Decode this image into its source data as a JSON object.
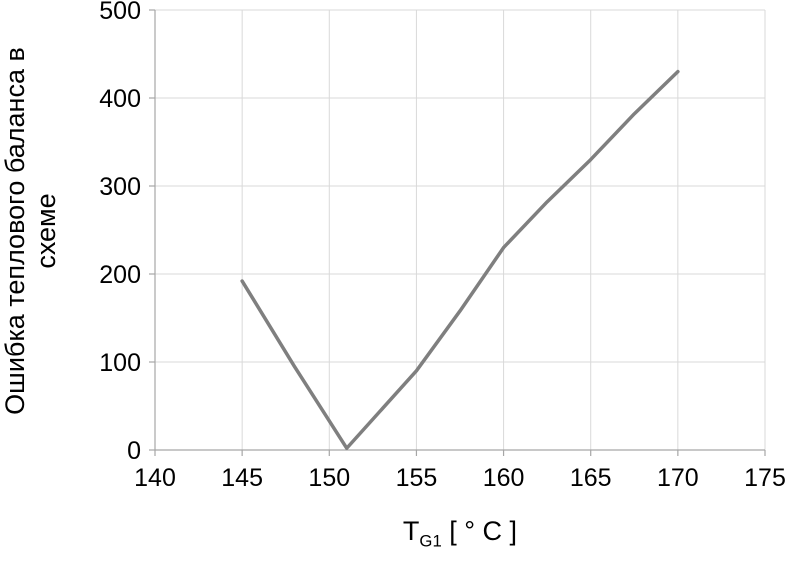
{
  "chart_data": {
    "type": "line",
    "title": "",
    "xlabel": "T_G1 [ ° C ]",
    "xlabel_main": "T",
    "xlabel_sub": "G1",
    "xlabel_unit": " [ ° C ]",
    "ylabel": "Ошибка теплового баланса в схеме",
    "ylabel_line1": "Ошибка теплового баланса в",
    "ylabel_line2": "схеме",
    "x": [
      145,
      148,
      151,
      153,
      155,
      157.5,
      160,
      162.5,
      165,
      167.5,
      170
    ],
    "y": [
      192,
      95,
      2,
      46,
      90,
      158,
      230,
      282,
      330,
      382,
      430
    ],
    "xlim": [
      140,
      175
    ],
    "ylim": [
      0,
      500
    ],
    "xticks": [
      140,
      145,
      150,
      155,
      160,
      165,
      170,
      175
    ],
    "yticks": [
      0,
      100,
      200,
      300,
      400,
      500
    ],
    "grid": true,
    "legend": "none",
    "line_color": "#7f7f7f",
    "grid_color": "#d9d9d9",
    "axis_color": "#a6a6a6",
    "line_width": 3.5
  }
}
